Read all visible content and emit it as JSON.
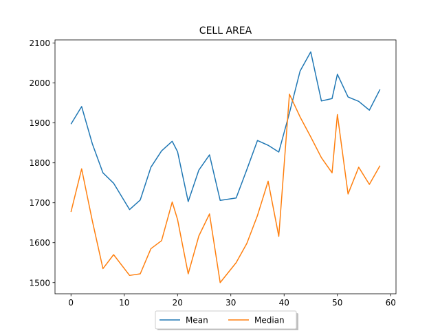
{
  "chart_data": {
    "type": "line",
    "title": "CELL AREA",
    "xlabel": "",
    "ylabel": "",
    "xlim": [
      -3,
      61
    ],
    "ylim": [
      1472,
      2108
    ],
    "xticks": [
      0,
      10,
      20,
      30,
      40,
      50,
      60
    ],
    "yticks": [
      1500,
      1600,
      1700,
      1800,
      1900,
      2000,
      2100
    ],
    "grid": false,
    "legend": {
      "placement": "bottom-center",
      "columns": 2,
      "shadow": true
    },
    "series": [
      {
        "name": "Mean",
        "color": "#1f77b4",
        "x": [
          0,
          2,
          4,
          6,
          8,
          11,
          13,
          15,
          17,
          19,
          20,
          22,
          24,
          26,
          28,
          31,
          33,
          35,
          37,
          39,
          41,
          43,
          45,
          47,
          49,
          50,
          52,
          54,
          56,
          58
        ],
        "y": [
          1897,
          1941,
          1848,
          1775,
          1749,
          1683,
          1707,
          1789,
          1830,
          1854,
          1828,
          1703,
          1782,
          1820,
          1706,
          1712,
          1783,
          1856,
          1844,
          1827,
          1925,
          2030,
          2078,
          1955,
          1961,
          2022,
          1965,
          1954,
          1932,
          1984
        ]
      },
      {
        "name": "Median",
        "color": "#ff7f0e",
        "x": [
          0,
          2,
          4,
          6,
          8,
          11,
          13,
          15,
          17,
          19,
          20,
          22,
          24,
          26,
          28,
          31,
          33,
          35,
          37,
          39,
          41,
          43,
          45,
          47,
          49,
          50,
          52,
          54,
          56,
          58
        ],
        "y": [
          1677,
          1785,
          1655,
          1535,
          1570,
          1518,
          1522,
          1585,
          1605,
          1702,
          1658,
          1522,
          1617,
          1672,
          1500,
          1550,
          1598,
          1668,
          1754,
          1616,
          1972,
          1915,
          1865,
          1813,
          1775,
          1921,
          1722,
          1789,
          1746,
          1793
        ]
      }
    ]
  }
}
